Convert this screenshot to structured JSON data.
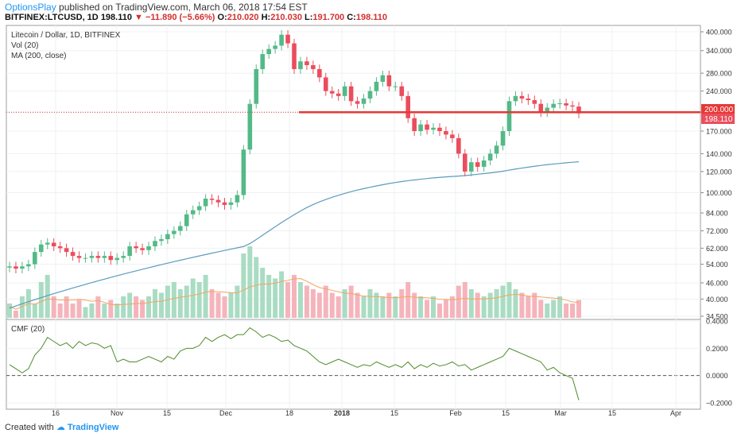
{
  "header": {
    "author": "OptionsPlay",
    "published_text": "published on TradingView.com, March 06, 2018 17:54 EST",
    "symbol": "BITFINEX:LTCUSD, 1D",
    "last": "198.110",
    "change": "−11.890 (−5.66%)",
    "open_label": "O:",
    "open": "210.020",
    "high_label": "H:",
    "high": "210.030",
    "low_label": "L:",
    "low": "191.700",
    "close_label": "C:",
    "close": "198.110"
  },
  "legend": {
    "title": "Litecoin / Dollar, 1D, BITFINEX",
    "vol": "Vol (20)",
    "ma": "MA (200, close)",
    "cmf": "CMF (20)"
  },
  "footer": {
    "created_with": "Created with",
    "brand": "TradingView"
  },
  "colors": {
    "up": "#53b987",
    "down": "#eb4d5c",
    "ma": "#5b9bbd",
    "cmf": "#4e8b2a",
    "hline": "#e53935",
    "vol_up": "#a9dcc3",
    "vol_down": "#f5b4bb",
    "vol_ma": "#f4a460"
  },
  "chart_data": [
    {
      "type": "candlestick",
      "title": "Litecoin / Dollar, 1D, BITFINEX",
      "scale": "log",
      "ylim": [
        34.5,
        400
      ],
      "y_ticks": [
        400,
        340,
        280,
        240,
        200,
        170,
        140,
        120,
        100,
        84,
        72,
        62,
        54,
        46,
        40,
        34.5
      ],
      "x_ticks": [
        "16",
        "Nov",
        "15",
        "Dec",
        "18",
        "2018",
        "15",
        "Feb",
        "15",
        "Mar",
        "15",
        "Apr"
      ],
      "price_labels": {
        "resistance": "200.000",
        "last": "198.110"
      },
      "resistance_level": 200,
      "close_series": [
        53,
        52,
        53,
        54,
        60,
        64,
        65,
        63,
        62,
        60,
        58,
        57,
        57,
        58,
        57,
        58,
        56,
        57,
        58,
        63,
        62,
        61,
        63,
        66,
        67,
        70,
        72,
        75,
        83,
        86,
        89,
        95,
        94,
        92,
        90,
        92,
        98,
        145,
        215,
        290,
        330,
        345,
        355,
        390,
        362,
        290,
        310,
        300,
        290,
        270,
        240,
        235,
        230,
        250,
        220,
        215,
        225,
        240,
        260,
        275,
        250,
        250,
        230,
        190,
        170,
        180,
        172,
        175,
        170,
        165,
        160,
        140,
        120,
        130,
        125,
        132,
        140,
        150,
        170,
        220,
        230,
        225,
        222,
        215,
        200,
        208,
        215,
        216,
        212,
        210,
        198
      ],
      "ma200_series": [
        37,
        37.7,
        38.4,
        39.1,
        39.8,
        40.5,
        41.2,
        41.9,
        42.6,
        43.3,
        44,
        44.7,
        45.4,
        46.1,
        46.8,
        47.5,
        48.2,
        48.9,
        49.6,
        50.3,
        51,
        51.7,
        52.4,
        53.1,
        53.8,
        54.5,
        55.2,
        55.9,
        56.6,
        57.3,
        58,
        58.7,
        59.4,
        60.1,
        60.8,
        61.5,
        62.2,
        62.9,
        64.5,
        66.8,
        69.3,
        71.9,
        74.6,
        77.3,
        80,
        82.7,
        85.4,
        88,
        90.3,
        92.4,
        94.3,
        96.1,
        97.8,
        99.4,
        100.9,
        102.3,
        103.6,
        104.8,
        106,
        107.1,
        108.2,
        109.2,
        110.1,
        110.9,
        111.6,
        112.3,
        113,
        113.6,
        114.1,
        114.6,
        115,
        115.4,
        115.9,
        116.5,
        117.2,
        117.9,
        118.6,
        119.4,
        120.3,
        121.5,
        122.6,
        123.6,
        124.6,
        125.6,
        126.5,
        127.3,
        128,
        128.7,
        129.4,
        130,
        130.5
      ]
    },
    {
      "type": "bar",
      "title": "Vol (20)",
      "relative_volume": [
        0.2,
        0.1,
        0.3,
        0.4,
        0.2,
        0.5,
        0.6,
        0.3,
        0.2,
        0.3,
        0.2,
        0.25,
        0.15,
        0.2,
        0.3,
        0.2,
        0.25,
        0.2,
        0.3,
        0.35,
        0.3,
        0.25,
        0.3,
        0.4,
        0.35,
        0.45,
        0.5,
        0.4,
        0.45,
        0.55,
        0.5,
        0.6,
        0.4,
        0.35,
        0.3,
        0.35,
        0.45,
        0.9,
        1.0,
        0.85,
        0.7,
        0.6,
        0.55,
        0.65,
        0.5,
        0.6,
        0.5,
        0.45,
        0.4,
        0.35,
        0.45,
        0.35,
        0.3,
        0.4,
        0.45,
        0.35,
        0.3,
        0.4,
        0.35,
        0.3,
        0.35,
        0.3,
        0.4,
        0.5,
        0.35,
        0.3,
        0.25,
        0.3,
        0.2,
        0.25,
        0.3,
        0.45,
        0.5,
        0.4,
        0.35,
        0.3,
        0.35,
        0.4,
        0.45,
        0.5,
        0.4,
        0.35,
        0.3,
        0.35,
        0.25,
        0.2,
        0.25,
        0.3,
        0.2,
        0.2,
        0.25
      ],
      "y_ticks_shared": true
    },
    {
      "type": "line",
      "title": "CMF (20)",
      "ylim": [
        -0.2,
        0.4
      ],
      "y_ticks": [
        "0.4000",
        "0.2000",
        "0.0000",
        "−0.2000"
      ],
      "y_tick_values": [
        0.4,
        0.2,
        0,
        -0.2
      ],
      "values": [
        0.08,
        0.05,
        0.02,
        0.05,
        0.15,
        0.2,
        0.28,
        0.25,
        0.22,
        0.24,
        0.2,
        0.25,
        0.22,
        0.24,
        0.23,
        0.2,
        0.22,
        0.1,
        0.12,
        0.1,
        0.1,
        0.12,
        0.14,
        0.12,
        0.1,
        0.14,
        0.12,
        0.18,
        0.2,
        0.2,
        0.22,
        0.28,
        0.25,
        0.28,
        0.3,
        0.27,
        0.3,
        0.3,
        0.35,
        0.32,
        0.28,
        0.3,
        0.28,
        0.25,
        0.26,
        0.22,
        0.2,
        0.18,
        0.14,
        0.1,
        0.08,
        0.1,
        0.12,
        0.1,
        0.08,
        0.06,
        0.08,
        0.07,
        0.1,
        0.08,
        0.06,
        0.08,
        0.06,
        0.1,
        0.05,
        0.08,
        0.06,
        0.09,
        0.07,
        0.08,
        0.1,
        0.07,
        0.08,
        0.04,
        0.06,
        0.08,
        0.1,
        0.12,
        0.14,
        0.2,
        0.18,
        0.16,
        0.14,
        0.12,
        0.1,
        0.04,
        0.06,
        0.02,
        0.0,
        -0.02,
        -0.18
      ]
    }
  ]
}
